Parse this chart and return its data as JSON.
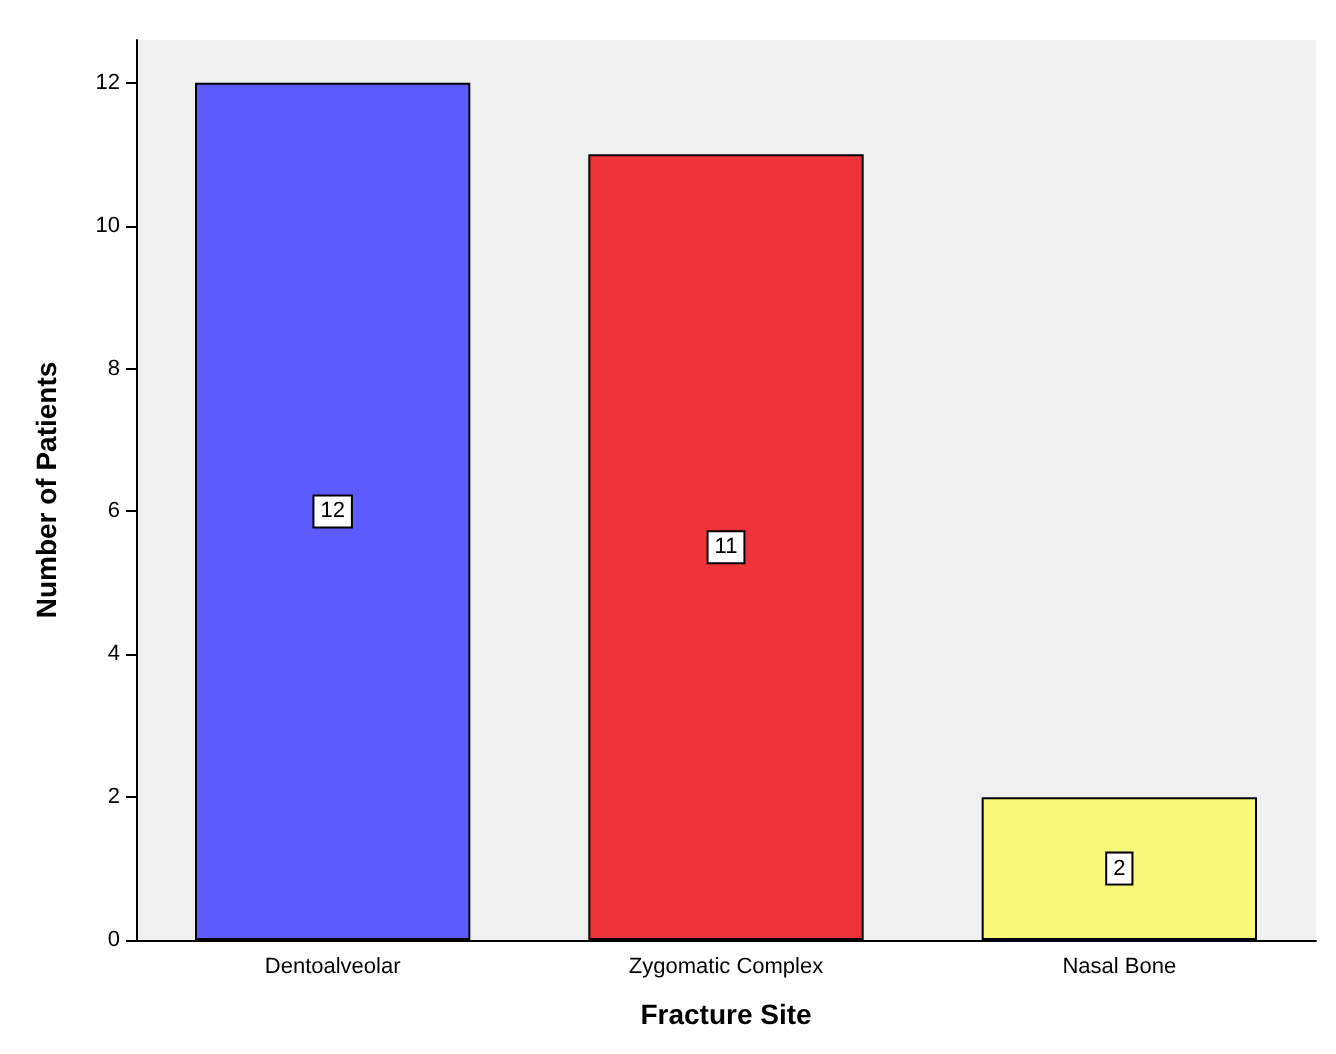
{
  "chart_data": {
    "type": "bar",
    "xlabel": "Fracture Site",
    "ylabel": "Number of Patients",
    "categories": [
      "Dentoalveolar",
      "Zygomatic Complex",
      "Nasal Bone"
    ],
    "values": [
      12,
      11,
      2
    ],
    "colors": [
      "#5b5bff",
      "#ef333b",
      "#f7f77a"
    ],
    "ylim": [
      0,
      12.6
    ],
    "yticks": [
      0,
      2,
      4,
      6,
      8,
      10,
      12
    ],
    "grid": false,
    "data_labels": true
  }
}
